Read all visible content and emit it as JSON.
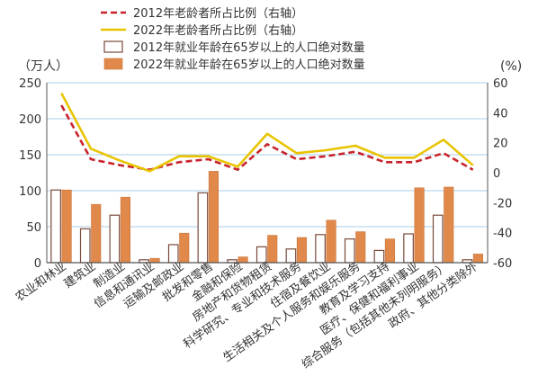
{
  "chart_data": {
    "type": "bar",
    "title": "",
    "left_axis": {
      "unit": "（万人）",
      "range": [
        0,
        250
      ],
      "ticks": [
        "0",
        "50",
        "100",
        "150",
        "200",
        "250"
      ]
    },
    "right_axis": {
      "unit": "(%)",
      "range": [
        -60,
        60
      ],
      "ticks": [
        "-60",
        "-40",
        "-20",
        "0",
        "20",
        "40",
        "60"
      ]
    },
    "categories": [
      "农业和林业",
      "建筑业",
      "制造业",
      "信息和通讯业",
      "运输及邮政业",
      "批发和零售",
      "金融和保险",
      "房地产和货物租赁",
      "科学研究、专业和技术服务",
      "住宿及餐饮业",
      "生活相关及个人服务和娱乐服务",
      "教育及学习支持",
      "医疗、保健和福利事业",
      "综合服务（包括其他未列明服务）",
      "政府、其他分类除外"
    ],
    "series": [
      {
        "name": "2012年就业年龄在65岁以上的人口绝对数量",
        "kind": "bar",
        "axis": "left",
        "color": "#ffffff",
        "values": [
          101,
          47,
          66,
          4,
          25,
          97,
          4,
          22,
          19,
          39,
          33,
          17,
          40,
          66,
          4
        ]
      },
      {
        "name": "2022年就业年龄在65岁以上的人口绝对数量",
        "kind": "bar",
        "axis": "left",
        "color": "#e0894a",
        "values": [
          101,
          81,
          91,
          6,
          41,
          127,
          8,
          38,
          35,
          59,
          43,
          33,
          104,
          105,
          12
        ]
      },
      {
        "name": "2012年老龄者所占比例（右轴）",
        "kind": "line",
        "axis": "right",
        "color": "#c8232c",
        "dashed": true,
        "values": [
          45,
          9,
          5,
          2,
          7,
          9,
          2,
          19,
          9,
          11,
          14,
          7,
          7,
          13,
          2
        ]
      },
      {
        "name": "2022年老龄者所占比例（右轴）",
        "kind": "line",
        "axis": "right",
        "color": "#e8c400",
        "dashed": false,
        "values": [
          53,
          16,
          8,
          1,
          11,
          11,
          4,
          26,
          13,
          15,
          18,
          10,
          10,
          22,
          5
        ]
      }
    ],
    "legend_position": "top"
  }
}
